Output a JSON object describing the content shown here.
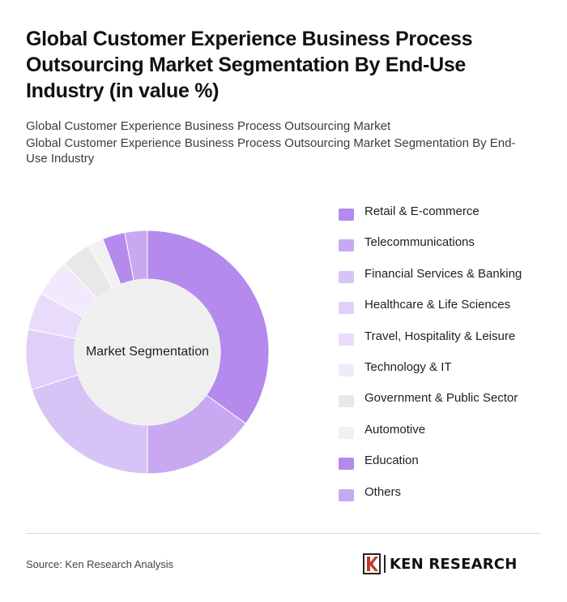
{
  "header": {
    "title": "Global Customer Experience Business Process Outsourcing Market Segmentation By End-Use Industry (in value %)",
    "subtitle_1": "Global Customer Experience Business Process Outsourcing Market",
    "subtitle_2": "Global Customer Experience Business Process Outsourcing Market Segmentation By End-Use Industry"
  },
  "chart_data": {
    "type": "pie",
    "variant": "donut",
    "center_label": "Market Segmentation",
    "legend_position": "right",
    "categories": [
      "Retail & E-commerce",
      "Telecommunications",
      "Financial Services & Banking",
      "Healthcare & Life Sciences",
      "Travel, Hospitality & Leisure",
      "Technology & IT",
      "Government & Public Sector",
      "Automotive",
      "Education",
      "Others"
    ],
    "values": [
      35,
      15,
      20,
      8,
      5,
      5,
      4,
      2,
      3,
      3
    ],
    "colors": [
      "#b48aec",
      "#c9a8f2",
      "#d8c3f6",
      "#e0cff8",
      "#e8dcfa",
      "#f0eafc",
      "#e8e8e8",
      "#f1f1f1",
      "#b48aec",
      "#c9a8f2"
    ]
  },
  "footer": {
    "source": "Source: Ken Research Analysis",
    "brand": "KEN RESEARCH",
    "logo_icon": "ken-research-logo-icon"
  }
}
